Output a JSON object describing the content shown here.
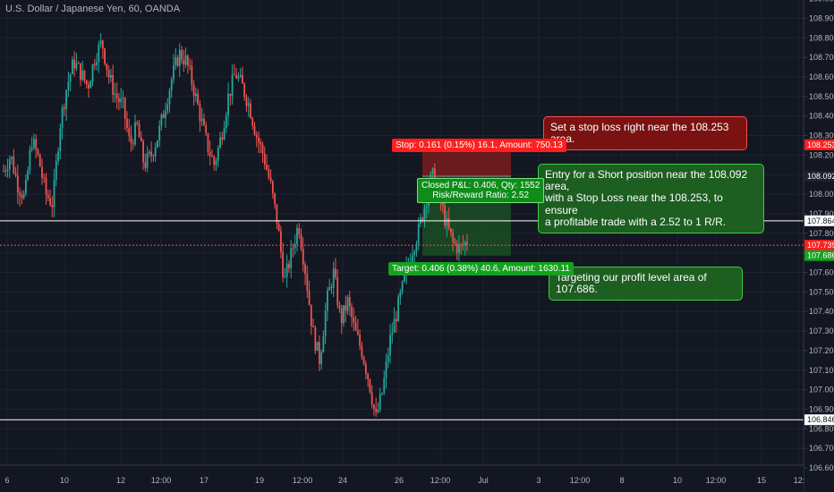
{
  "header": {
    "symbol_title": "U.S. Dollar / Japanese Yen, 60, OANDA"
  },
  "colors": {
    "background": "#131722",
    "up": "#26a69a",
    "down": "#ef5350",
    "text": "#b2b5be",
    "stop_zone": "#7a1c1c",
    "target_zone": "#1a4a24"
  },
  "chart_data": {
    "type": "candlestick",
    "ylim": [
      106.6,
      109.08
    ],
    "y_ticks": [
      "109.000",
      "108.900",
      "108.800",
      "108.700",
      "108.600",
      "108.500",
      "108.400",
      "108.300",
      "108.200",
      "108.100",
      "108.000",
      "107.900",
      "107.800",
      "107.700",
      "107.600",
      "107.500",
      "107.400",
      "107.300",
      "107.200",
      "107.100",
      "107.000",
      "106.900",
      "106.800",
      "106.700",
      "106.600"
    ],
    "x_ticks": [
      "6",
      "10",
      "12",
      "12:00",
      "17",
      "19",
      "12:00",
      "24",
      "26",
      "12:00",
      "Jul",
      "3",
      "12:00",
      "8",
      "10",
      "12:00",
      "15",
      "12:"
    ],
    "horizontal_lines": [
      {
        "label": "107.864",
        "value": 107.864,
        "style": "solid",
        "color": "#ffffff"
      },
      {
        "label": "106.846",
        "value": 106.846,
        "style": "solid",
        "color": "#ffffff"
      },
      {
        "label": "107.739",
        "value": 107.739,
        "style": "dotted",
        "color": "#ef5350"
      }
    ],
    "price_tags": [
      {
        "label": "108.253",
        "value": 108.253,
        "color": "#ff1f1f"
      },
      {
        "label": "108.092",
        "value": 108.092,
        "color": "#1e222d"
      },
      {
        "label": "107.739",
        "value": 107.739,
        "color": "#ff1f1f"
      },
      {
        "label": "107.686",
        "value": 107.686,
        "color": "#14a21e"
      }
    ],
    "position": {
      "entry": 108.092,
      "stop": 108.253,
      "target": 107.686,
      "side": "short"
    },
    "price_path": [
      108.12,
      108.2,
      108.05,
      107.98,
      108.28,
      108.18,
      108.0,
      107.95,
      108.35,
      108.55,
      108.68,
      108.62,
      108.55,
      108.7,
      108.78,
      108.6,
      108.5,
      108.45,
      108.25,
      108.35,
      108.15,
      108.2,
      108.3,
      108.45,
      108.6,
      108.72,
      108.68,
      108.55,
      108.4,
      108.25,
      108.15,
      108.3,
      108.5,
      108.62,
      108.55,
      108.45,
      108.3,
      108.2,
      108.05,
      107.85,
      107.55,
      107.7,
      107.85,
      107.6,
      107.3,
      107.15,
      107.45,
      107.6,
      107.35,
      107.45,
      107.3,
      107.2,
      107.05,
      106.85,
      107.0,
      107.25,
      107.4,
      107.55,
      107.7,
      107.8,
      107.95,
      108.1,
      108.0,
      107.85,
      107.75,
      107.72,
      107.76
    ]
  },
  "annotations": {
    "stop_callout": "Set a stop loss right near the 108.253 area.",
    "entry_callout_l1": "Entry for a Short position near the 108.092 area,",
    "entry_callout_l2": "with a Stop Loss near the 108.253, to ensure",
    "entry_callout_l3": "a profitable trade with a 2.52 to 1 R/R.",
    "target_callout": "Targeting our profit level area of 107.686.",
    "stop_tag": "Stop: 0.161 (0.15%) 16.1, Amount: 750.13",
    "closed_pnl": "Closed P&L: 0.406, Qty: 1552",
    "rr_ratio": "Risk/Reward Ratio: 2.52",
    "target_tag": "Target: 0.406 (0.38%) 40.6, Amount: 1630.11"
  }
}
